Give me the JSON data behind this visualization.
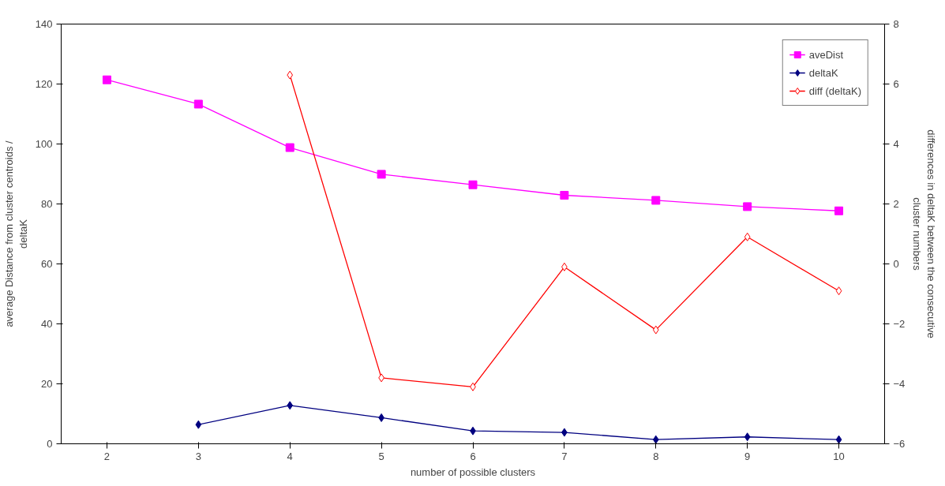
{
  "chart_data": {
    "type": "line",
    "xlabel": "number of possible clusters",
    "ylabel": "average Distance from cluster centroids / deltaK",
    "y2label": "differences in deltaK between the consecutive cluster numbers",
    "categories": [
      "2",
      "3",
      "4",
      "5",
      "6",
      "7",
      "8",
      "9",
      "10"
    ],
    "series": [
      {
        "name": "aveDist",
        "color": "#ff00ff",
        "marker": "square",
        "values": [
          121.4,
          113.3,
          98.8,
          89.9,
          86.4,
          82.9,
          81.2,
          79.1,
          77.7
        ]
      },
      {
        "name": "deltaK",
        "color": "#000080",
        "marker": "diamond",
        "values": [
          null,
          6.4,
          12.8,
          8.7,
          4.3,
          3.8,
          1.4,
          2.3,
          1.4
        ]
      },
      {
        "name": "diff (deltaK)",
        "color": "#ff0000",
        "marker": "diamond",
        "axis": "y2",
        "values": [
          null,
          null,
          6.3,
          -3.8,
          -4.1,
          -0.1,
          -2.2,
          0.9,
          -0.9
        ]
      }
    ],
    "ylim": [
      0,
      140
    ],
    "yticks": [
      0,
      20,
      40,
      60,
      80,
      100,
      120,
      140
    ],
    "y2lim": [
      -6,
      8
    ],
    "y2ticks": [
      -6,
      -4,
      -2,
      0,
      2,
      4,
      6,
      8
    ],
    "legend": "top right",
    "grid": false
  }
}
